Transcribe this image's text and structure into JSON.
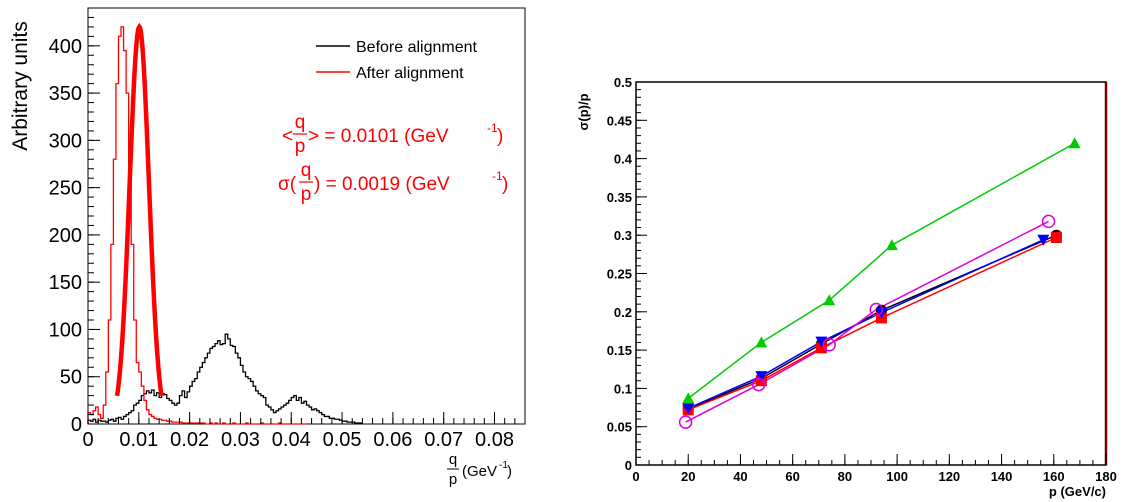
{
  "chart_data": [
    {
      "type": "histogram",
      "ylabel": "Arbitrary units",
      "xlabel": {
        "frac_num": "q",
        "frac_den": "p",
        "unit": "(GeV",
        "unit_exp": "-1",
        "unit_close": ")"
      },
      "xlim": [
        0,
        0.086
      ],
      "ylim": [
        0,
        440
      ],
      "x_ticks": [
        0,
        0.01,
        0.02,
        0.03,
        0.04,
        0.05,
        0.06,
        0.07,
        0.08
      ],
      "x_tick_labels": [
        "0",
        "0.01",
        "0.02",
        "0.03",
        "0.04",
        "0.05",
        "0.06",
        "0.07",
        "0.08"
      ],
      "y_ticks": [
        0,
        50,
        100,
        150,
        200,
        250,
        300,
        350,
        400
      ],
      "y_tick_labels": [
        "0",
        "50",
        "100",
        "150",
        "200",
        "250",
        "300",
        "350",
        "400"
      ],
      "legend": [
        {
          "label": "Before alignment",
          "color": "#000000"
        },
        {
          "label": "After alignment",
          "color": "#ff0000"
        }
      ],
      "annotations": {
        "mean_prefix": "<",
        "mean_num": "q",
        "mean_den": "p",
        "mean_suffix": "> = 0.0101 (GeV",
        "mean_exp": "-1",
        "mean_close": ")",
        "sigma_prefix": "σ(",
        "sigma_num": "q",
        "sigma_den": "p",
        "sigma_suffix": ") = 0.0019 (GeV",
        "sigma_exp": "-1",
        "sigma_close": ")"
      },
      "series": [
        {
          "name": "Before alignment",
          "color": "#000000",
          "bin_width": 0.0005,
          "x_start": 0.0,
          "values": [
            4,
            3,
            5,
            2,
            4,
            3,
            3,
            2,
            4,
            5,
            3,
            6,
            7,
            5,
            8,
            10,
            12,
            14,
            20,
            22,
            25,
            30,
            32,
            35,
            33,
            36,
            30,
            33,
            28,
            32,
            31,
            27,
            25,
            22,
            20,
            22,
            30,
            35,
            28,
            34,
            40,
            45,
            48,
            55,
            60,
            65,
            70,
            75,
            80,
            82,
            85,
            88,
            84,
            85,
            95,
            90,
            83,
            82,
            75,
            70,
            62,
            55,
            50,
            48,
            45,
            40,
            35,
            32,
            30,
            28,
            20,
            18,
            15,
            12,
            14,
            16,
            18,
            20,
            22,
            25,
            28,
            30,
            25,
            28,
            22,
            24,
            20,
            18,
            15,
            16,
            14,
            12,
            10,
            8,
            8,
            6,
            6,
            5,
            5,
            4,
            3,
            3,
            2,
            2,
            2,
            1,
            1,
            1
          ]
        },
        {
          "name": "After alignment",
          "color": "#ff0000",
          "peak_mean": 0.0101,
          "peak_sigma": 0.0019,
          "bin_width": 0.0005,
          "x_start": 0.0,
          "values": [
            12,
            10,
            14,
            18,
            10,
            6,
            20,
            55,
            110,
            190,
            280,
            360,
            410,
            420,
            395,
            350,
            270,
            190,
            110,
            65,
            55,
            40,
            25,
            15,
            10,
            8,
            6,
            5,
            5,
            4,
            4,
            3,
            3,
            2,
            2,
            2,
            2,
            1,
            1,
            1,
            1,
            1,
            1,
            1,
            1,
            1,
            0,
            0,
            1,
            0,
            1,
            0,
            0,
            1,
            0,
            0,
            0,
            1,
            0,
            0,
            0,
            0,
            1,
            0,
            0,
            0,
            0,
            0,
            1,
            0,
            0,
            0,
            0,
            0,
            0,
            1,
            0,
            0,
            0,
            0,
            0,
            0,
            0,
            0,
            0,
            0
          ]
        }
      ]
    },
    {
      "type": "line",
      "ylabel": "σ(p)/p",
      "xlabel": "p (GeV/c)",
      "xlim": [
        0,
        180
      ],
      "ylim": [
        0,
        0.5
      ],
      "x_ticks": [
        0,
        20,
        40,
        60,
        80,
        100,
        120,
        140,
        160,
        180
      ],
      "x_tick_labels": [
        "0",
        "20",
        "40",
        "60",
        "80",
        "100",
        "120",
        "140",
        "160",
        "180"
      ],
      "y_ticks": [
        0,
        0.05,
        0.1,
        0.15,
        0.2,
        0.25,
        0.3,
        0.35,
        0.4,
        0.45,
        0.5
      ],
      "y_tick_labels": [
        "0",
        "0.05",
        "0.1",
        "0.15",
        "0.2",
        "0.25",
        "0.3",
        "0.35",
        "0.4",
        "0.45",
        "0.5"
      ],
      "series": [
        {
          "color": "#00cc00",
          "marker": "triangle-up",
          "x": [
            20,
            48,
            74,
            98,
            168
          ],
          "y": [
            0.087,
            0.16,
            0.215,
            0.287,
            0.42
          ]
        },
        {
          "color": "#000000",
          "marker": "circle-filled",
          "x": [
            20,
            48,
            71,
            94,
            161
          ],
          "y": [
            0.073,
            0.113,
            0.158,
            0.202,
            0.3
          ]
        },
        {
          "color": "#ff0000",
          "marker": "square",
          "x": [
            20,
            48,
            71,
            94,
            161
          ],
          "y": [
            0.072,
            0.11,
            0.153,
            0.192,
            0.297
          ]
        },
        {
          "color": "#0000ff",
          "marker": "triangle-down",
          "x": [
            20,
            48,
            71,
            94,
            156
          ],
          "y": [
            0.074,
            0.116,
            0.161,
            0.199,
            0.294
          ]
        },
        {
          "color": "#dd00dd",
          "marker": "circle-open",
          "x": [
            19,
            47,
            74,
            92,
            158
          ],
          "y": [
            0.056,
            0.105,
            0.157,
            0.203,
            0.318
          ]
        }
      ]
    }
  ]
}
